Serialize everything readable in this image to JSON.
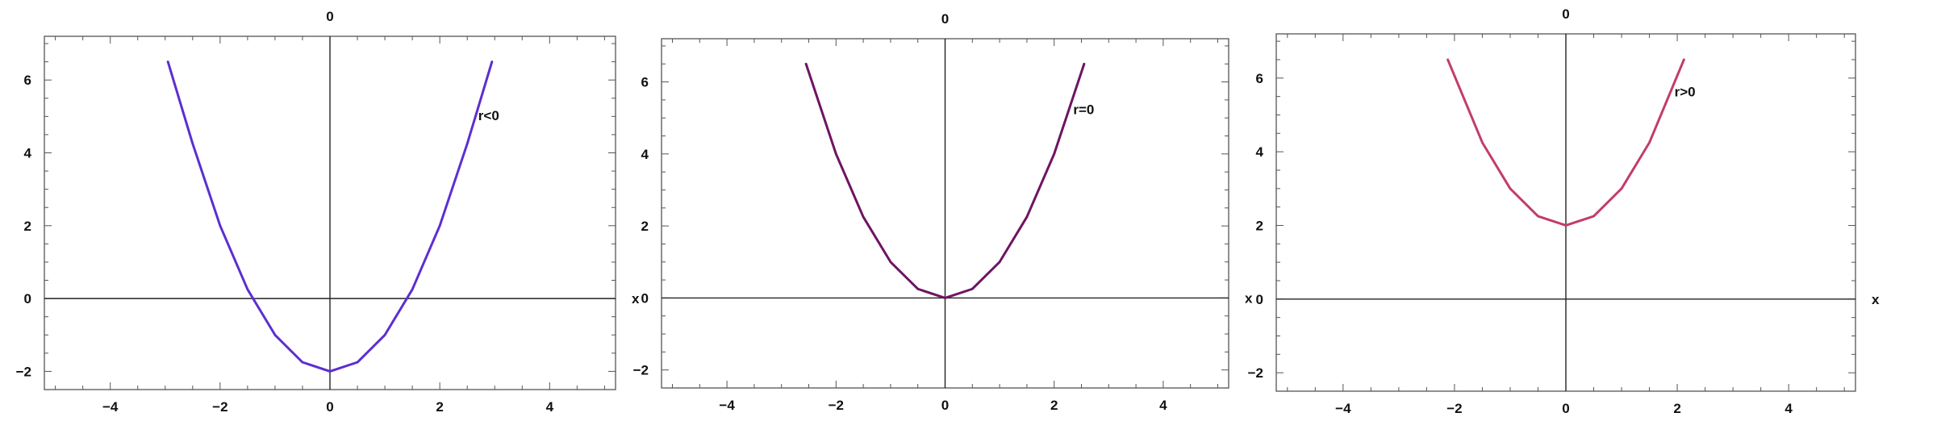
{
  "chart_data": [
    {
      "type": "line",
      "title": "",
      "xlabel": "x",
      "ylabel": "0",
      "xlim": [
        -5.2,
        5.2
      ],
      "ylim": [
        -2.5,
        7.2
      ],
      "xticks": [
        -4,
        -2,
        0,
        2,
        4
      ],
      "yticks": [
        -2,
        0,
        2,
        4,
        6
      ],
      "grid": false,
      "series": [
        {
          "name": "r<0",
          "color": "#5b2fd1",
          "x": [
            -2.95,
            -2.5,
            -2.0,
            -1.5,
            -1.0,
            -0.5,
            0.0,
            0.5,
            1.0,
            1.5,
            2.0,
            2.5,
            2.95
          ],
          "values": [
            6.5,
            4.25,
            2.0,
            0.25,
            -1.0,
            -1.75,
            -2.0,
            -1.75,
            -1.0,
            0.25,
            2.0,
            4.25,
            6.5
          ]
        }
      ],
      "annotations": [
        {
          "text": "r<0",
          "x": 2.7,
          "y": 4.9
        }
      ]
    },
    {
      "type": "line",
      "title": "",
      "xlabel": "x",
      "ylabel": "0",
      "xlim": [
        -5.2,
        5.2
      ],
      "ylim": [
        -2.5,
        7.2
      ],
      "xticks": [
        -4,
        -2,
        0,
        2,
        4
      ],
      "yticks": [
        -2,
        0,
        2,
        4,
        6
      ],
      "grid": false,
      "series": [
        {
          "name": "r=0",
          "color": "#6e1463",
          "x": [
            -2.55,
            -2.0,
            -1.5,
            -1.0,
            -0.5,
            0.0,
            0.5,
            1.0,
            1.5,
            2.0,
            2.55
          ],
          "values": [
            6.5,
            4.0,
            2.25,
            1.0,
            0.25,
            0.0,
            0.25,
            1.0,
            2.25,
            4.0,
            6.5
          ]
        }
      ],
      "annotations": [
        {
          "text": "r=0",
          "x": 2.35,
          "y": 5.1
        }
      ]
    },
    {
      "type": "line",
      "title": "",
      "xlabel": "x",
      "ylabel": "0",
      "xlim": [
        -5.2,
        5.2
      ],
      "ylim": [
        -2.5,
        7.2
      ],
      "xticks": [
        -4,
        -2,
        0,
        2,
        4
      ],
      "yticks": [
        -2,
        0,
        2,
        4,
        6
      ],
      "grid": false,
      "series": [
        {
          "name": "r>0",
          "color": "#c23c6e",
          "x": [
            -2.12,
            -1.5,
            -1.0,
            -0.5,
            0.0,
            0.5,
            1.0,
            1.5,
            2.12
          ],
          "values": [
            6.5,
            4.25,
            3.0,
            2.25,
            2.0,
            2.25,
            3.0,
            4.25,
            6.5
          ]
        }
      ],
      "annotations": [
        {
          "text": "r>0",
          "x": 1.95,
          "y": 5.5
        }
      ]
    }
  ]
}
